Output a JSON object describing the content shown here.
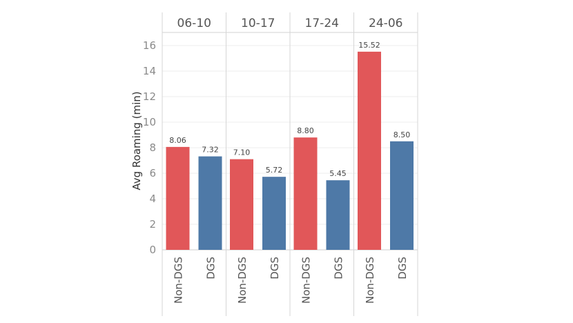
{
  "chart_data": {
    "type": "bar",
    "ylabel": "Avg Roaming (min)",
    "ylim": [
      0,
      17
    ],
    "yticks": [
      0,
      2,
      4,
      6,
      8,
      10,
      12,
      14,
      16
    ],
    "grid": true,
    "legend": "none",
    "categories": [
      "Non-DGS",
      "DGS"
    ],
    "colors": {
      "Non-DGS": "#e15759",
      "DGS": "#4e79a7"
    },
    "panels": [
      {
        "title": "06-10",
        "values": [
          8.06,
          7.32
        ],
        "labels": [
          "8.06",
          "7.32"
        ]
      },
      {
        "title": "10-17",
        "values": [
          7.1,
          5.72
        ],
        "labels": [
          "7.10",
          "5.72"
        ]
      },
      {
        "title": "17-24",
        "values": [
          8.8,
          5.45
        ],
        "labels": [
          "8.80",
          "5.45"
        ]
      },
      {
        "title": "24-06",
        "values": [
          15.52,
          8.5
        ],
        "labels": [
          "15.52",
          "8.50"
        ]
      }
    ]
  }
}
